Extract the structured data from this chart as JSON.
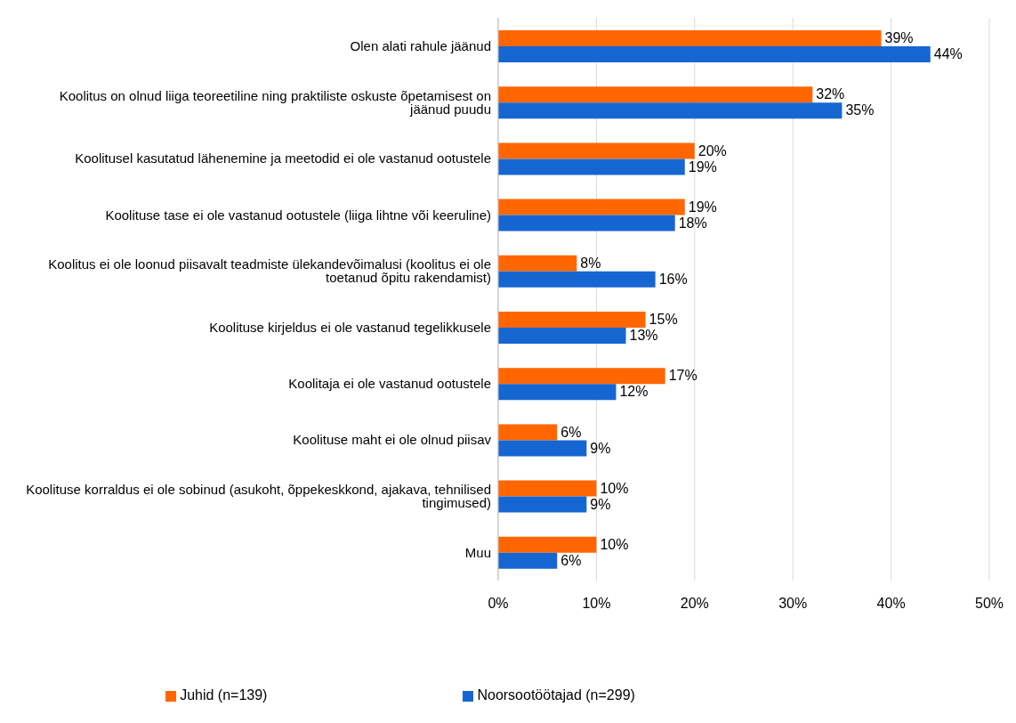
{
  "chart_data": {
    "type": "bar",
    "orientation": "horizontal",
    "categories": [
      "Olen alati rahule jäänud",
      "Koolitus on olnud liiga teoreetiline ning praktiliste oskuste õpetamisest on jäänud puudu",
      "Koolitusel kasutatud lähenemine ja meetodid ei ole vastanud ootustele",
      "Koolituse tase ei ole vastanud ootustele (liiga lihtne või keeruline)",
      "Koolitus ei ole loonud piisavalt teadmiste ülekandevõimalusi (koolitus ei ole toetanud õpitu rakendamist)",
      "Koolituse kirjeldus ei ole vastanud tegelikkusele",
      "Koolitaja ei ole vastanud ootustele",
      "Koolituse maht ei ole olnud piisav",
      "Koolituse korraldus ei ole sobinud (asukoht, õppekeskkond, ajakava, tehnilised tingimused)",
      "Muu"
    ],
    "series": [
      {
        "name": "Juhid (n=139)",
        "color": "#ff6600",
        "values": [
          39,
          32,
          20,
          19,
          8,
          15,
          17,
          6,
          10,
          10
        ],
        "value_labels": [
          "39%",
          "32%",
          "20%",
          "19%",
          "8%",
          "15%",
          "17%",
          "6%",
          "10%",
          "10%"
        ]
      },
      {
        "name": "Noorsootöötajad (n=299)",
        "color": "#1666d2",
        "values": [
          44,
          35,
          19,
          18,
          16,
          13,
          12,
          9,
          9,
          6
        ],
        "value_labels": [
          "44%",
          "35%",
          "19%",
          "18%",
          "16%",
          "13%",
          "12%",
          "9%",
          "9%",
          "6%"
        ]
      }
    ],
    "xlim": [
      0,
      50
    ],
    "xticks": [
      {
        "value": 0,
        "label": "0%"
      },
      {
        "value": 10,
        "label": "10%"
      },
      {
        "value": 20,
        "label": "20%"
      },
      {
        "value": 30,
        "label": "30%"
      },
      {
        "value": 40,
        "label": "40%"
      },
      {
        "value": 50,
        "label": "50%"
      }
    ],
    "grid": "x",
    "legend": "bottom"
  }
}
